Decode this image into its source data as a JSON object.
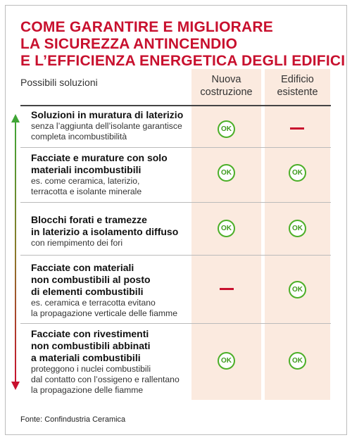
{
  "title": {
    "line1": "COME GARANTIRE E MIGLIORARE",
    "line2": "LA SICUREZZA ANTINCENDIO",
    "line3": "E L’EFFICIENZA ENERGETICA DEGLI EDIFICI"
  },
  "header": {
    "solutions": "Possibili soluzioni",
    "col1_line1": "Nuova",
    "col1_line2": "costruzione",
    "col2_line1": "Edificio",
    "col2_line2": "esistente"
  },
  "rows": [
    {
      "title": [
        "Soluzioni in muratura di laterizio"
      ],
      "desc": [
        "senza l’aggiunta dell’isolante garantisce",
        "completa incombustibilità"
      ],
      "nuova": "OK",
      "esistente": "—"
    },
    {
      "title": [
        "Facciate e murature con solo",
        "materiali incombustibili"
      ],
      "desc": [
        "es. come ceramica, laterizio,",
        "terracotta e isolante minerale"
      ],
      "nuova": "OK",
      "esistente": "OK"
    },
    {
      "title": [
        "Blocchi forati e tramezze",
        "in laterizio a isolamento diffuso"
      ],
      "desc": [
        "con riempimento dei fori"
      ],
      "nuova": "OK",
      "esistente": "OK"
    },
    {
      "title": [
        "Facciate con materiali",
        "non combustibili al posto",
        "di elementi combustibili"
      ],
      "desc": [
        "es. ceramica e terracotta evitano",
        "la propagazione verticale delle fiamme"
      ],
      "nuova": "—",
      "esistente": "OK"
    },
    {
      "title": [
        "Facciate con rivestimenti",
        "non combustibili abbinati",
        "a materiali combustibili"
      ],
      "desc": [
        "proteggono i nuclei combustibili",
        "dal contatto con l’ossigeno e rallentano",
        "la propagazione delle fiamme"
      ],
      "nuova": "OK",
      "esistente": "OK"
    }
  ],
  "source": "Fonte: Confindustria Ceramica",
  "colors": {
    "accent": "#c8102e",
    "ok_green": "#4caf28",
    "column_bg": "#fbeadf"
  }
}
